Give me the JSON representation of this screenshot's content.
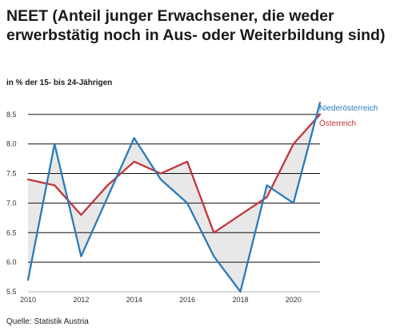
{
  "header": {
    "title": "NEET (Anteil junger Erwachsener, die weder erwerbstätig noch in Aus- oder Weiterbildung sind)",
    "subtitle": "in % der 15- bis 24-Jährigen"
  },
  "footer": {
    "source": "Quelle: Statistik Austria"
  },
  "chart_data": {
    "type": "line",
    "title": "NEET (Anteil junger Erwachsener, die weder erwerbstätig noch in Aus- oder Weiterbildung sind)",
    "subtitle": "in % der 15- bis 24-Jährigen",
    "x": [
      2010,
      2011,
      2012,
      2013,
      2014,
      2015,
      2016,
      2017,
      2018,
      2019,
      2020,
      2021
    ],
    "x_tick_labels": [
      "2010",
      "2012",
      "2014",
      "2016",
      "2018",
      "2020"
    ],
    "y_tick_labels": [
      "5.5",
      "6.0",
      "6.5",
      "7.0",
      "7.5",
      "8.0",
      "8.5"
    ],
    "ylim": [
      5.5,
      8.7
    ],
    "grid": "horizontal",
    "area_between_series": true,
    "legend_placement": "right",
    "series": [
      {
        "name": "Niederösterreich",
        "color": "#2b7bb9",
        "values": [
          5.7,
          8.0,
          6.1,
          7.1,
          8.1,
          7.4,
          7.0,
          6.1,
          5.5,
          7.3,
          7.0,
          8.7
        ]
      },
      {
        "name": "Österreich",
        "color": "#c4343c",
        "values": [
          7.4,
          7.3,
          6.8,
          7.3,
          7.7,
          7.5,
          7.7,
          6.5,
          6.8,
          7.1,
          8.0,
          8.5
        ]
      }
    ],
    "fill_color": "#e8e8e8"
  }
}
